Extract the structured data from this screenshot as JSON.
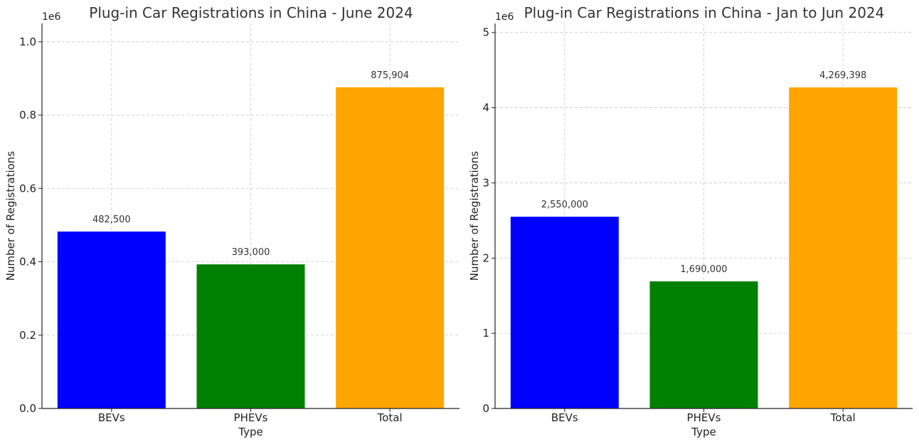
{
  "chart_data": [
    {
      "type": "bar",
      "title": "Plug-in Car Registrations in China - June 2024",
      "xlabel": "Type",
      "ylabel": "Number of Registrations",
      "offset_label": "1e6",
      "categories": [
        "BEVs",
        "PHEVs",
        "Total"
      ],
      "values": [
        482500,
        393000,
        875904
      ],
      "data_labels": [
        "482,500",
        "393,000",
        "875,904"
      ],
      "colors": [
        "#0000ff",
        "#008000",
        "#ffa500"
      ],
      "ylim": [
        0,
        1050000
      ],
      "yticks": [
        0,
        200000,
        400000,
        600000,
        800000,
        1000000
      ],
      "ytick_labels": [
        "0.0",
        "0.2",
        "0.4",
        "0.6",
        "0.8",
        "1.0"
      ],
      "grid": true
    },
    {
      "type": "bar",
      "title": "Plug-in Car Registrations in China - Jan to Jun 2024",
      "xlabel": "Type",
      "ylabel": "Number of Registrations",
      "offset_label": "1e6",
      "categories": [
        "BEVs",
        "PHEVs",
        "Total"
      ],
      "values": [
        2550000,
        1690000,
        4269398
      ],
      "data_labels": [
        "2,550,000",
        "1,690,000",
        "4,269,398"
      ],
      "colors": [
        "#0000ff",
        "#008000",
        "#ffa500"
      ],
      "ylim": [
        0,
        5120000
      ],
      "yticks": [
        0,
        1000000,
        2000000,
        3000000,
        4000000,
        5000000
      ],
      "ytick_labels": [
        "0",
        "1",
        "2",
        "3",
        "4",
        "5"
      ],
      "grid": true
    }
  ]
}
